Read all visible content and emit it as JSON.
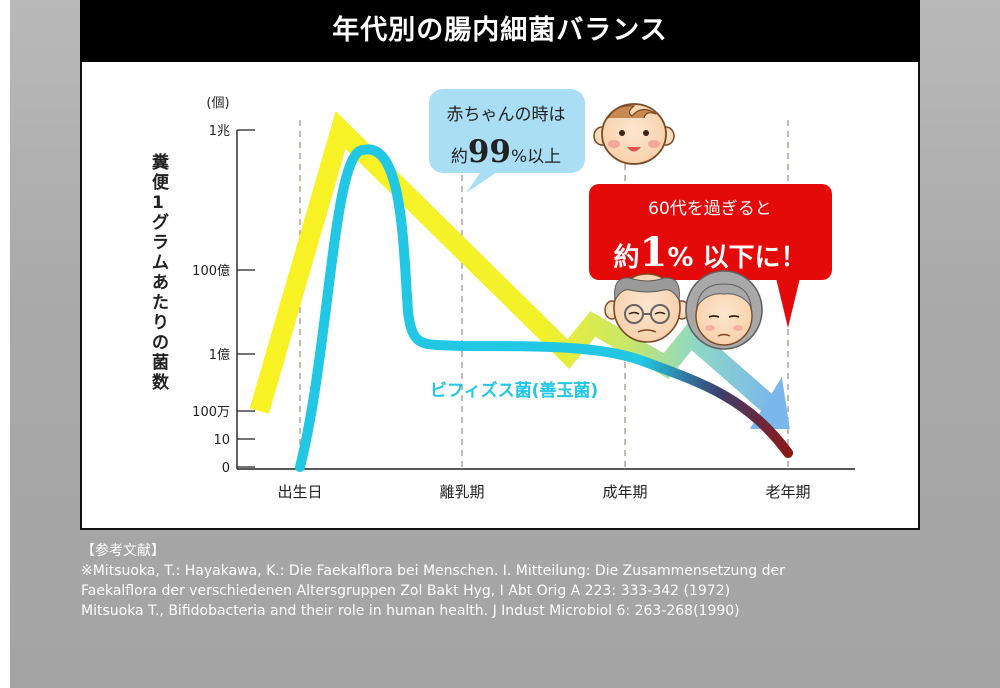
{
  "chart_data": {
    "type": "line",
    "title": "年代別の腸内細菌バランス",
    "ylabel": "糞便1グラムあたりの菌数",
    "y_unit": "(個)",
    "y_scale": "log",
    "y_ticks": [
      "1兆",
      "100億",
      "1億",
      "100万",
      "10",
      "0"
    ],
    "categories": [
      "出生日",
      "離乳期",
      "成年期",
      "老年期"
    ],
    "series": [
      {
        "name": "ビフィズス菌(善玉菌)",
        "color": "#22c7e3",
        "points": [
          {
            "x": 0.0,
            "y": "0"
          },
          {
            "x": 0.45,
            "y": "1兆"
          },
          {
            "x": 1.0,
            "y": "1億"
          },
          {
            "x": 2.0,
            "y": "1億"
          },
          {
            "x": 3.0,
            "y": "10"
          }
        ]
      },
      {
        "name": "",
        "color": "#f9f224",
        "points": [
          {
            "x": -0.25,
            "y": "100万"
          },
          {
            "x": 0.25,
            "y": "1兆"
          },
          {
            "x": 1.65,
            "y": "1億"
          },
          {
            "x": 3.0,
            "y": "100万"
          }
        ]
      }
    ],
    "callouts": {
      "baby_line1": "赤ちゃんの時は",
      "baby_prefix": "約",
      "baby_value": "99",
      "baby_suffix": "%以上",
      "senior_line1": "60代を過ぎると",
      "senior_prefix": "約",
      "senior_value": "1",
      "senior_suffix": "% 以下に！"
    }
  },
  "references": {
    "heading": "【参考文献】",
    "lines": [
      "※Mitsuoka, T.: Hayakawa, K.: Die Faekalflora bei Menschen. I. Mitteilung: Die Zusammensetzung der",
      "Faekalflora der verschiedenen Altersgruppen Zol Bakt Hyg, I Abt Orig A 223: 333-342 (1972)",
      "Mitsuoka T., Bifidobacteria and their role in human health. J Indust Microbiol 6: 263-268(1990)"
    ]
  }
}
